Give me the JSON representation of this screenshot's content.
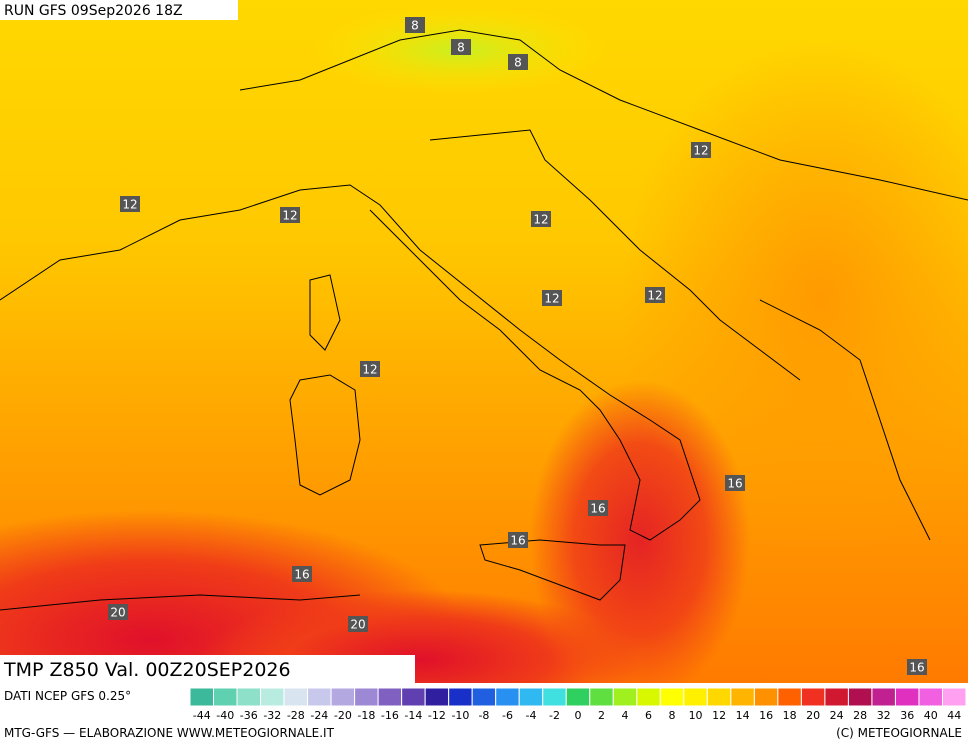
{
  "header": {
    "run": "RUN GFS 09Sep2026 18Z"
  },
  "map": {
    "title": "TMP Z850 Val. 00Z20SEP2026",
    "contour_labels": [
      8,
      8,
      8,
      12,
      12,
      12,
      12,
      12,
      12,
      12,
      16,
      16,
      16,
      16,
      20,
      20,
      16
    ]
  },
  "colorbar": {
    "labels": [
      -44,
      -40,
      -36,
      -32,
      -28,
      -24,
      -20,
      -18,
      -16,
      -14,
      -12,
      -10,
      -8,
      -6,
      -4,
      -2,
      0,
      2,
      4,
      6,
      8,
      10,
      12,
      14,
      16,
      18,
      20,
      24,
      28,
      32,
      36,
      40,
      44
    ],
    "colors": [
      "#3cb89a",
      "#5fd0b0",
      "#8ee0c8",
      "#b8ece0",
      "#d8e4f0",
      "#c8c8ec",
      "#b4a8e0",
      "#9c88d4",
      "#8060c0",
      "#6040b0",
      "#3020a0",
      "#1830c8",
      "#2060e0",
      "#2890f0",
      "#30b8f0",
      "#40e0e0",
      "#30d060",
      "#60e040",
      "#a0f020",
      "#d8f800",
      "#ffff00",
      "#fff000",
      "#ffd800",
      "#ffb400",
      "#ff9000",
      "#ff6000",
      "#f03020",
      "#d01830",
      "#b01050",
      "#c02090",
      "#e030c0",
      "#f060e0",
      "#ffa0f0"
    ]
  },
  "footer": {
    "source": "DATI NCEP GFS 0.25°",
    "credit": "MTG-GFS — ELABORAZIONE WWW.METEOGIORNALE.IT",
    "copyright": "(C) METEOGIORNALE"
  }
}
